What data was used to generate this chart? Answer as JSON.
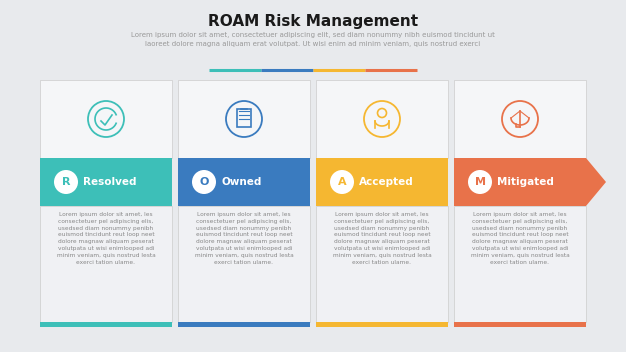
{
  "title": "ROAM Risk Management",
  "subtitle": "Lorem ipsum dolor sit amet, consectetuer adipiscing elit, sed diam nonummy nibh euismod tincidunt ut\nlaoreet dolore magna aliquam erat volutpat. Ut wisi enim ad minim veniam, quis nostrud exerci",
  "background_color": "#e8eaed",
  "card_bg_upper": "#f0f1f4",
  "card_bg_lower": "#e2e4e9",
  "items": [
    {
      "letter": "R",
      "label": "Resolved",
      "color": "#3dbfb8"
    },
    {
      "letter": "O",
      "label": "Owned",
      "color": "#3a7bbf"
    },
    {
      "letter": "A",
      "label": "Accepted",
      "color": "#f5b731"
    },
    {
      "letter": "M",
      "label": "Mitigated",
      "color": "#e8724a"
    }
  ],
  "divider_colors": [
    "#3dbfb8",
    "#3a7bbf",
    "#f5b731",
    "#e8724a"
  ],
  "body_text": "Lorem ipsum dolor sit amet, les\nconsectetuer pel adipiscing elis,\nusedsed diam nonummy penibh\neuismod tincidunt reut loop neet\ndolore magnaw aliquam peserat\nvolutpata ut wisi enimlooped adi\nminim veniam, quis nostrud lesta\nexerci tation ulame.",
  "title_fontsize": 11,
  "subtitle_fontsize": 5.0,
  "label_fontsize": 7.5,
  "letter_fontsize": 8,
  "body_fontsize": 4.2
}
